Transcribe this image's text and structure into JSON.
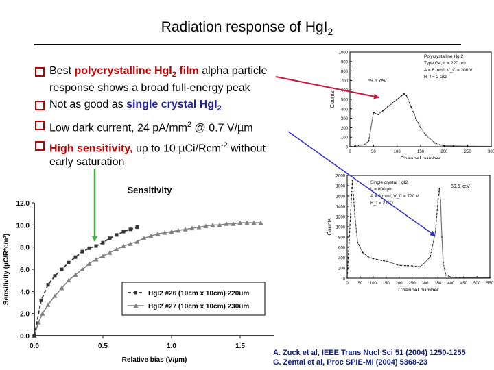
{
  "title": {
    "main": "Radiation response of HgI",
    "sub": "2"
  },
  "bullets": [
    {
      "pre": "Best ",
      "hl": "polycrystalline HgI",
      "hl_sub": "2",
      "hl2": " film",
      "post": " alpha particle",
      "line2": "response shows a broad full-energy peak"
    },
    {
      "pre": "Not as good as ",
      "hl": "single crystal HgI",
      "hl_sub": "2"
    },
    {
      "pre": "Low dark current, 24 pA/mm",
      "sup": "2",
      "post": " @ 0.7 V/",
      "mu": "µ",
      "post2": "m"
    },
    {
      "pre_hl": "High sensitivity,",
      "mid": " up to 10 ",
      "mu": "µ",
      "mid2": "Ci/Rcm",
      "sup": "-2",
      "post": " without",
      "line2": "early saturation"
    }
  ],
  "references": [
    "A. Zuck et al, IEEE Trans Nucl Sci 51 (2004) 1250-1255",
    "G. Zentai et al, Proc SPIE-MI (2004) 5368-23"
  ],
  "colors": {
    "arrow_red": "#d0103a",
    "arrow_blue": "#2b2bd0",
    "arrow_green": "#3cb83c",
    "series_dark": "#333333",
    "series_grey": "#808080",
    "bullet_box": "#c00000"
  },
  "chart_data": [
    {
      "type": "line",
      "title": "Sensitivity",
      "xlabel": "Relative bias (V/µm)",
      "ylabel": "Sensitivity (µC/R*cm²)",
      "xlim": [
        0,
        1.75
      ],
      "ylim": [
        0,
        12
      ],
      "xticks": [
        "0.0",
        "0.5",
        "1.0",
        "1.5"
      ],
      "yticks": [
        "0.0",
        "2.0",
        "4.0",
        "6.0",
        "8.0",
        "10.0",
        "12.0"
      ],
      "legend_position": "bottom-right",
      "series": [
        {
          "name": "HgI2 #26 (10cm x 10cm) 220um",
          "style": "dashed-square",
          "x": [
            0.0,
            0.05,
            0.1,
            0.15,
            0.2,
            0.25,
            0.3,
            0.35,
            0.4,
            0.45,
            0.5,
            0.55,
            0.6,
            0.65,
            0.7,
            0.75
          ],
          "y": [
            0.0,
            3.2,
            4.6,
            5.4,
            6.0,
            6.6,
            7.1,
            7.6,
            7.9,
            8.1,
            8.4,
            8.8,
            9.1,
            9.4,
            9.6,
            9.8
          ]
        },
        {
          "name": "HgI2 #27 (10cm x 10cm) 230um",
          "style": "solid-triangle",
          "x": [
            0.0,
            0.03,
            0.06,
            0.1,
            0.15,
            0.2,
            0.25,
            0.3,
            0.35,
            0.4,
            0.45,
            0.5,
            0.55,
            0.6,
            0.65,
            0.7,
            0.75,
            0.8,
            0.85,
            0.9,
            0.95,
            1.0,
            1.05,
            1.1,
            1.15,
            1.2,
            1.25,
            1.3,
            1.35,
            1.4,
            1.45,
            1.5,
            1.55,
            1.6,
            1.65
          ],
          "y": [
            0.0,
            1.2,
            2.0,
            2.8,
            3.6,
            4.3,
            5.0,
            5.5,
            6.0,
            6.5,
            6.9,
            7.2,
            7.5,
            7.8,
            8.1,
            8.3,
            8.5,
            8.8,
            9.0,
            9.2,
            9.3,
            9.4,
            9.5,
            9.6,
            9.7,
            9.8,
            9.9,
            10.0,
            10.0,
            10.1,
            10.1,
            10.2,
            10.2,
            10.2,
            10.2
          ]
        }
      ]
    },
    {
      "type": "scatter",
      "title": "",
      "xlabel": "Channel number",
      "ylabel": "Counts",
      "xlim": [
        0,
        300
      ],
      "ylim": [
        0,
        1000
      ],
      "xticks": [
        "0",
        "50",
        "100",
        "150",
        "200",
        "250",
        "300"
      ],
      "yticks": [
        "0",
        "100",
        "200",
        "300",
        "400",
        "500",
        "600",
        "700",
        "800",
        "900",
        "1000"
      ],
      "annotations": [
        "59.6 keV",
        "Polycrystalline HgI2",
        "Type G4, L = 220 µm",
        "A = 6 mm², V_C = 200 V",
        "R_f = 2 GΩ"
      ],
      "x": [
        0,
        30,
        40,
        50,
        60,
        70,
        80,
        90,
        100,
        110,
        115,
        120,
        130,
        140,
        150,
        160,
        170,
        180,
        190,
        200,
        220,
        250,
        300
      ],
      "y": [
        0,
        20,
        60,
        360,
        340,
        380,
        420,
        460,
        500,
        540,
        560,
        540,
        420,
        300,
        200,
        130,
        80,
        40,
        20,
        10,
        8,
        5,
        3
      ]
    },
    {
      "type": "scatter",
      "title": "",
      "xlabel": "Channel number",
      "ylabel": "Counts",
      "xlim": [
        0,
        550
      ],
      "ylim": [
        0,
        2000
      ],
      "xticks": [
        "0",
        "50",
        "100",
        "150",
        "200",
        "250",
        "300",
        "350",
        "400",
        "450",
        "500",
        "550"
      ],
      "yticks": [
        "0",
        "200",
        "400",
        "600",
        "800",
        "1000",
        "1200",
        "1400",
        "1600",
        "1800",
        "2000"
      ],
      "annotations": [
        "59.6 keV",
        "Single crystal HgI2",
        "L = 800 µm",
        "A = 8 mm², V_C = 720 V",
        "R_f = 2 GΩ"
      ],
      "x": [
        0,
        20,
        30,
        40,
        60,
        80,
        100,
        150,
        200,
        250,
        280,
        300,
        320,
        340,
        350,
        355,
        360,
        365,
        370,
        380,
        400,
        450,
        550
      ],
      "y": [
        0,
        1900,
        1200,
        700,
        500,
        420,
        380,
        330,
        250,
        240,
        220,
        300,
        420,
        900,
        1500,
        1750,
        1500,
        800,
        300,
        60,
        20,
        10,
        5
      ]
    }
  ]
}
